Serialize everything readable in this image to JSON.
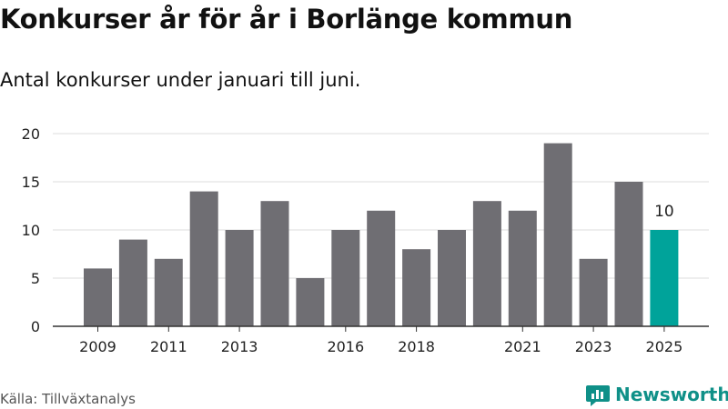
{
  "chart_data": {
    "type": "bar",
    "title": "Konkurser år för år i Borlänge kommun",
    "subtitle": "Antal konkurser under januari till juni.",
    "categories": [
      "2009",
      "2010",
      "2011",
      "2012",
      "2013",
      "2014",
      "2015",
      "2016",
      "2017",
      "2018",
      "2019",
      "2020",
      "2021",
      "2022",
      "2023",
      "2024",
      "2025"
    ],
    "values": [
      6,
      9,
      7,
      14,
      10,
      13,
      5,
      10,
      12,
      8,
      10,
      13,
      12,
      19,
      7,
      15,
      10
    ],
    "x_tick_labels": [
      "2009",
      "2011",
      "2013",
      "2016",
      "2018",
      "2021",
      "2023",
      "2025"
    ],
    "y_ticks": [
      0,
      5,
      10,
      15,
      20
    ],
    "ylim": [
      0,
      20
    ],
    "grid": true,
    "highlight": {
      "category": "2025",
      "value_label": "10"
    },
    "colors": {
      "bar": "#6f6e73",
      "highlight": "#00a39a",
      "grid": "#dddddd",
      "axis": "#333333"
    }
  },
  "source": "Källa: Tillväxtanalys",
  "brand": {
    "name": "Newsworthy",
    "icon": "newsworthy-logo-icon",
    "color": "#0f9088"
  }
}
